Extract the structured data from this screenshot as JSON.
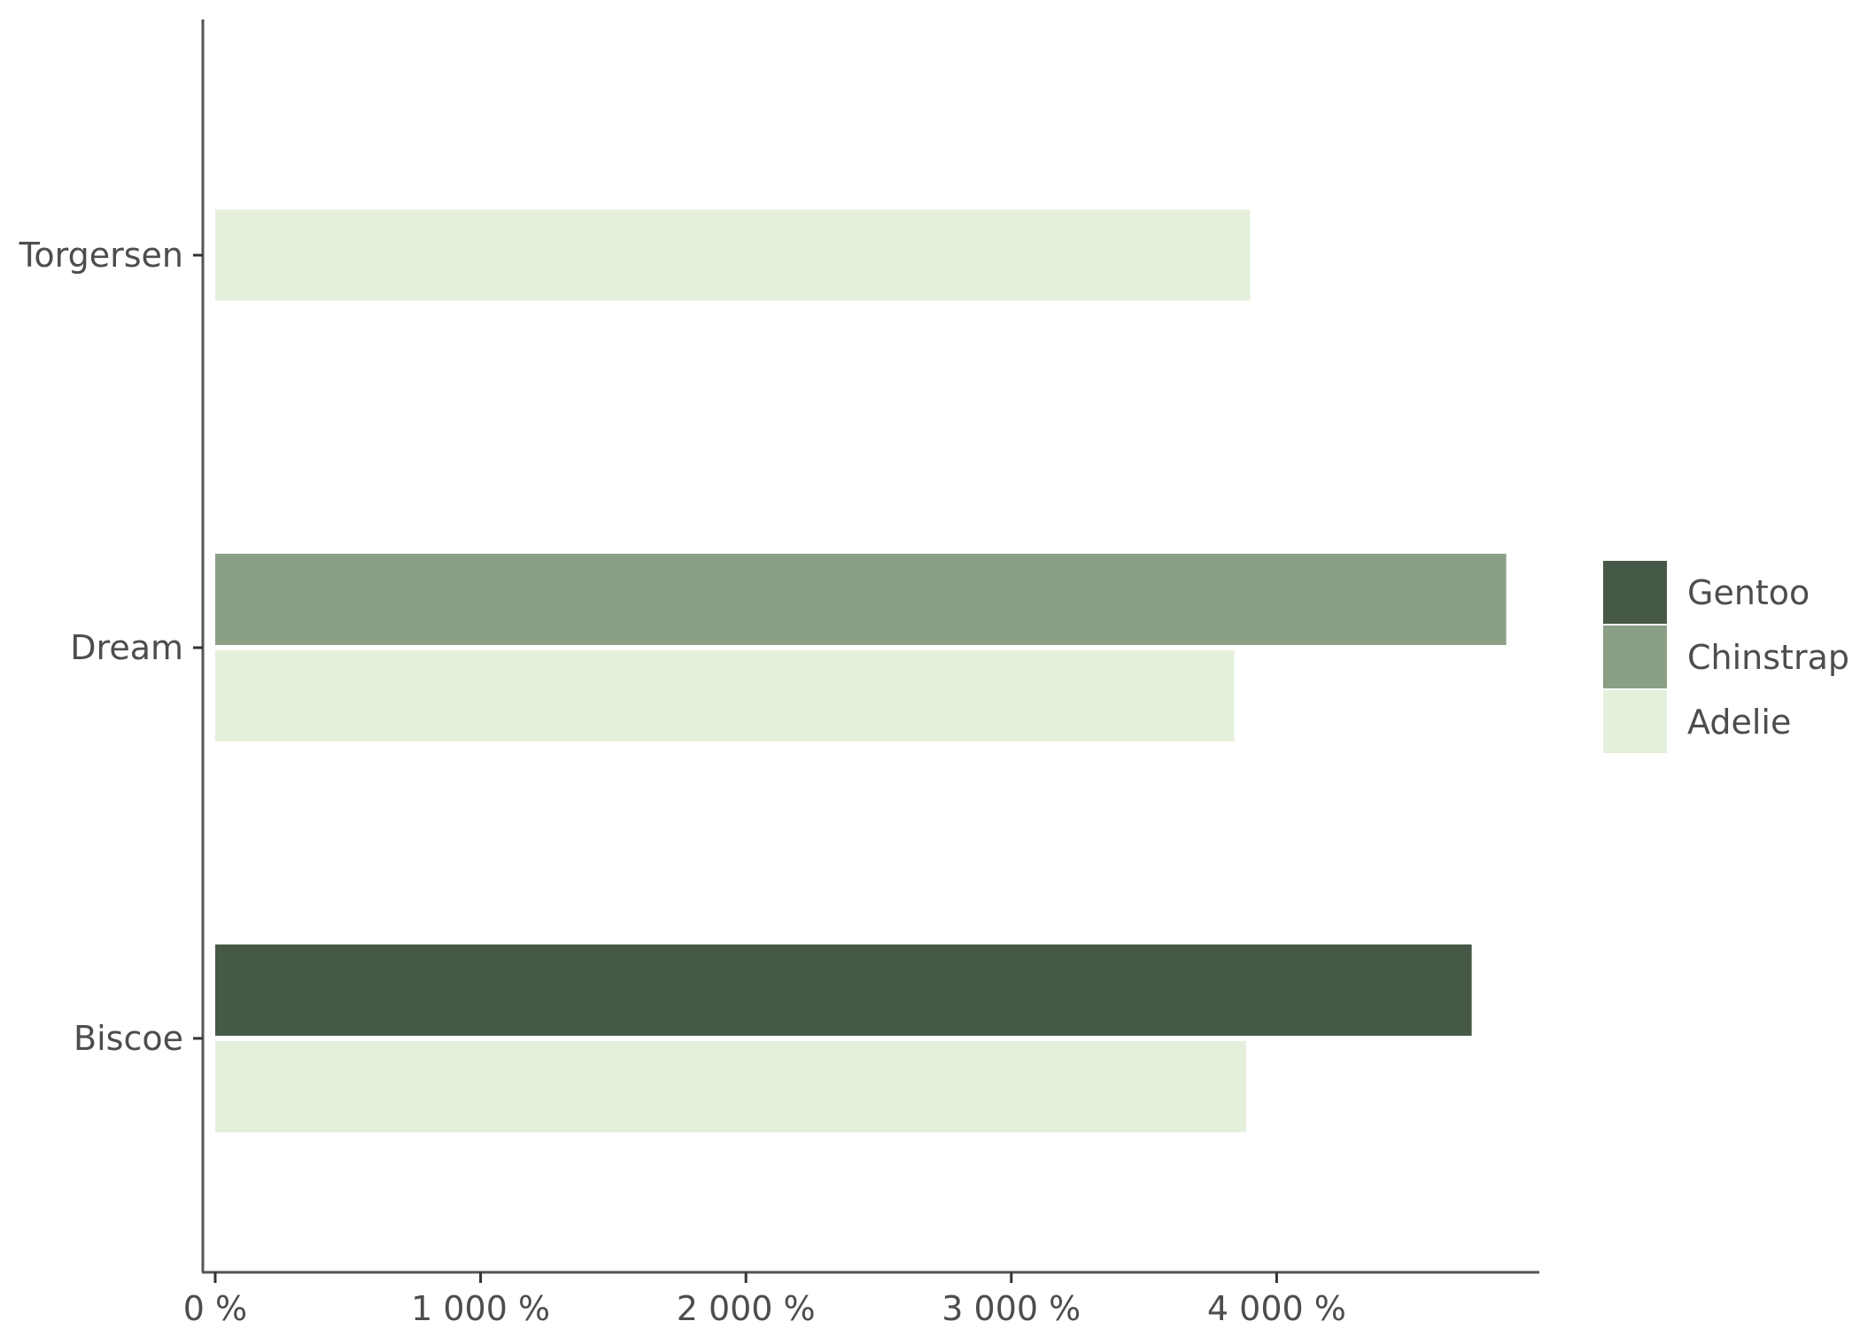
{
  "chart_data": {
    "type": "bar",
    "orientation": "horizontal",
    "position": "dodge",
    "categories": [
      "Biscoe",
      "Dream",
      "Torgersen"
    ],
    "series": [
      {
        "name": "Adelie",
        "color": "#e4f0dc",
        "values": [
          3885,
          3840,
          3900
        ]
      },
      {
        "name": "Chinstrap",
        "color": "#8a9f85",
        "values": [
          null,
          4865,
          null
        ]
      },
      {
        "name": "Gentoo",
        "color": "#465946",
        "values": [
          4735,
          null,
          null
        ]
      }
    ],
    "xticks": [
      0,
      1000,
      2000,
      3000,
      4000
    ],
    "xtick_labels": [
      "0 %",
      "1 000 %",
      "2 000 %",
      "3 000 %",
      "4 000 %"
    ],
    "xlim": [
      -50,
      4990
    ],
    "title": "",
    "xlabel": "",
    "ylabel": "",
    "grid": false,
    "legend": {
      "placement": "right",
      "order": [
        "Gentoo",
        "Chinstrap",
        "Adelie"
      ]
    }
  }
}
